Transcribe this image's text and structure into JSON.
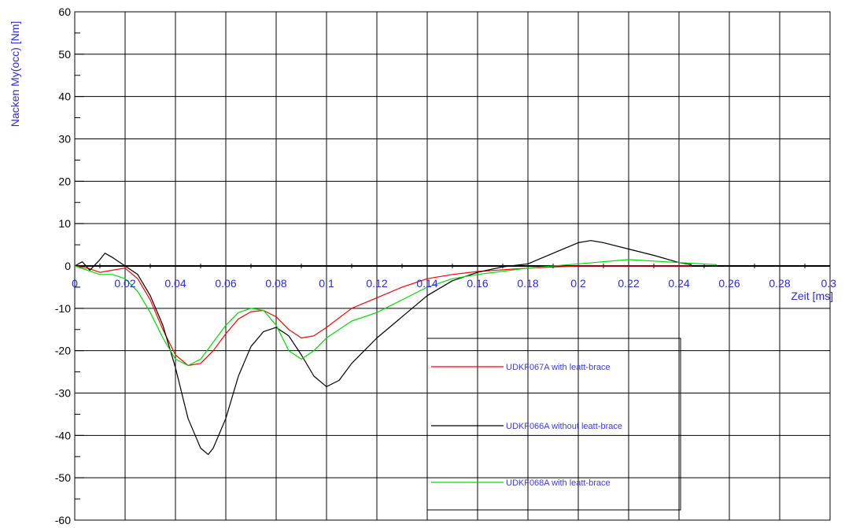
{
  "chart_data": {
    "type": "line",
    "title": "",
    "xlabel": "Zeit [ms]",
    "ylabel": "Nacken My(occ) [Nm]",
    "xlim": [
      0,
      0.3
    ],
    "ylim": [
      -60,
      60
    ],
    "x_ticks": [
      0,
      0.02,
      0.04,
      0.06,
      0.08,
      0.1,
      0.12,
      0.14,
      0.16,
      0.18,
      0.2,
      0.22,
      0.24,
      0.26,
      0.28,
      0.3
    ],
    "x_tick_labels": [
      "0",
      "0.02",
      "0.04",
      "0.06",
      "0.08",
      "0.1",
      "0.12",
      "0.14",
      "0.16",
      "0.18",
      "0.2",
      "0.22",
      "0.24",
      "0.26",
      "0.28",
      "0.3"
    ],
    "y_ticks": [
      -60,
      -50,
      -40,
      -30,
      -20,
      -10,
      0,
      10,
      20,
      30,
      40,
      50,
      60
    ],
    "y_tick_labels": [
      "-60",
      "-50",
      "-40",
      "-30",
      "-20",
      "-10",
      "0",
      "10",
      "20",
      "30",
      "40",
      "50",
      "60"
    ],
    "grid": true,
    "legend_position": "bottom-right",
    "series": [
      {
        "name": "UDKF067A with leatt-brace",
        "color": "#ff0000",
        "x": [
          0,
          0.005,
          0.01,
          0.015,
          0.02,
          0.025,
          0.03,
          0.035,
          0.04,
          0.045,
          0.05,
          0.055,
          0.06,
          0.065,
          0.07,
          0.075,
          0.08,
          0.085,
          0.09,
          0.095,
          0.1,
          0.11,
          0.12,
          0.13,
          0.14,
          0.15,
          0.16,
          0.18,
          0.2,
          0.22,
          0.24,
          0.245
        ],
        "y": [
          0,
          -0.5,
          -1.5,
          -1,
          -0.5,
          -3,
          -8,
          -15,
          -21,
          -23.5,
          -23,
          -20,
          -16,
          -12.5,
          -10.8,
          -10.5,
          -12,
          -15,
          -17,
          -16.5,
          -14.5,
          -10,
          -7.5,
          -5,
          -3,
          -2,
          -1.3,
          -0.5,
          0,
          0,
          0,
          0
        ]
      },
      {
        "name": "UDKF066A without leatt-brace",
        "color": "#000000",
        "x": [
          0,
          0.003,
          0.006,
          0.01,
          0.012,
          0.015,
          0.02,
          0.025,
          0.03,
          0.035,
          0.04,
          0.045,
          0.05,
          0.053,
          0.055,
          0.06,
          0.065,
          0.07,
          0.075,
          0.08,
          0.085,
          0.09,
          0.095,
          0.1,
          0.105,
          0.11,
          0.12,
          0.13,
          0.14,
          0.15,
          0.16,
          0.17,
          0.18,
          0.19,
          0.2,
          0.205,
          0.21,
          0.22,
          0.23,
          0.24,
          0.245
        ],
        "y": [
          0,
          1,
          -1,
          1.5,
          3,
          2,
          0,
          -2,
          -7,
          -14,
          -24,
          -36,
          -43,
          -44.5,
          -43,
          -36,
          -26,
          -19,
          -15.5,
          -14.5,
          -16.5,
          -21,
          -26,
          -28.5,
          -27,
          -23,
          -17,
          -12,
          -7,
          -3.5,
          -1.5,
          -0.2,
          0.5,
          3,
          5.5,
          6,
          5.5,
          4,
          2.5,
          0.8,
          0.3
        ]
      },
      {
        "name": "UDKF068A with leatt-brace",
        "color": "#00dd00",
        "x": [
          0,
          0.005,
          0.01,
          0.015,
          0.02,
          0.025,
          0.03,
          0.035,
          0.04,
          0.045,
          0.05,
          0.055,
          0.06,
          0.065,
          0.07,
          0.075,
          0.08,
          0.085,
          0.09,
          0.095,
          0.1,
          0.11,
          0.12,
          0.13,
          0.14,
          0.15,
          0.16,
          0.18,
          0.2,
          0.22,
          0.24,
          0.255
        ],
        "y": [
          0,
          -1,
          -2,
          -2,
          -3,
          -6,
          -11,
          -17,
          -22,
          -23.5,
          -22,
          -18,
          -14,
          -11,
          -10,
          -10.5,
          -14,
          -20,
          -22,
          -20,
          -17,
          -13,
          -11,
          -8,
          -5,
          -3,
          -2,
          -0.5,
          0.5,
          1.5,
          0.8,
          0.3
        ]
      }
    ]
  }
}
